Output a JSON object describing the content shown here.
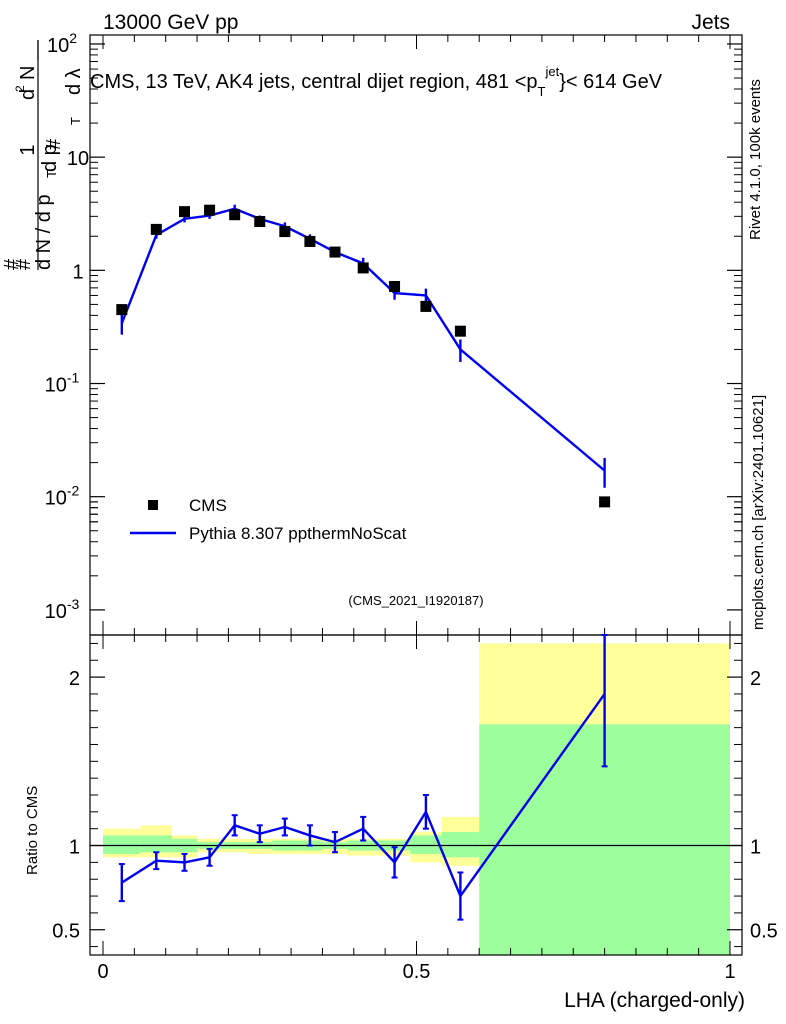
{
  "header": {
    "process": "13000 GeV pp",
    "category": "Jets",
    "side_label": "Rivet 4.1.0,  100k events",
    "side_source": "mcplots.cern.ch [arXiv:2401.10621]"
  },
  "main_panel": {
    "y_label": "1/dN/dp_T # d²N/dp_T dλ",
    "analysis_id": "(CMS_2021_I1920187)",
    "legend": {
      "data_label": "CMS",
      "mc_label": "Pythia 8.307 ppthermNoScat"
    }
  },
  "ratio_panel": {
    "y_label": "Ratio to CMS"
  },
  "colors": {
    "mc": "#0000ee",
    "data": "#000000",
    "band_inner": "#9cff9c",
    "band_outer": "#ffff99",
    "ref_text": "#999999"
  },
  "chart_data": {
    "type": "scatter",
    "title": "CMS, 13 TeV, AK4 jets, central dijet region, 481 <p_T^{jet}< 614 GeV",
    "xlabel": "LHA (charged-only)",
    "ylabel": "1/dN/dp_T # d²N/dp_T dλ",
    "xlim": [
      0,
      1
    ],
    "ylim": [
      0.0006,
      120
    ],
    "yscale": "log",
    "x_ticks": [
      "0",
      "0.5",
      "1"
    ],
    "y_ticks": [
      {
        "base": "10",
        "exp": "-3",
        "value": 0.001
      },
      {
        "base": "10",
        "exp": "-2",
        "value": 0.01
      },
      {
        "base": "10",
        "exp": "-1",
        "value": 0.1
      },
      {
        "base": "1",
        "exp": "",
        "value": 1
      },
      {
        "base": "10",
        "exp": "",
        "value": 10
      },
      {
        "base": "10",
        "exp": "2",
        "value": 100
      }
    ],
    "bin_edges": [
      0.0,
      0.06,
      0.11,
      0.15,
      0.19,
      0.23,
      0.27,
      0.31,
      0.35,
      0.39,
      0.44,
      0.49,
      0.54,
      0.6,
      1.0
    ],
    "series": [
      {
        "name": "CMS",
        "x": [
          0.03,
          0.085,
          0.13,
          0.17,
          0.21,
          0.25,
          0.29,
          0.33,
          0.37,
          0.415,
          0.465,
          0.515,
          0.57,
          0.8
        ],
        "values": [
          0.45,
          2.3,
          3.3,
          3.4,
          3.1,
          2.7,
          2.2,
          1.8,
          1.45,
          1.05,
          0.72,
          0.48,
          0.29,
          0.009
        ]
      },
      {
        "name": "Pythia 8.307 ppthermNoScat",
        "x": [
          0.03,
          0.085,
          0.13,
          0.17,
          0.21,
          0.25,
          0.29,
          0.33,
          0.37,
          0.415,
          0.465,
          0.515,
          0.57,
          0.8
        ],
        "values": [
          0.34,
          2.05,
          2.85,
          3.05,
          3.5,
          2.85,
          2.45,
          1.9,
          1.45,
          1.15,
          0.63,
          0.6,
          0.2,
          0.017
        ],
        "errors": [
          0.07,
          0.15,
          0.2,
          0.2,
          0.3,
          0.2,
          0.2,
          0.18,
          0.14,
          0.14,
          0.08,
          0.09,
          0.045,
          0.005
        ]
      }
    ],
    "ratio": {
      "ylabel": "Ratio to CMS",
      "ylim": [
        0.35,
        2.25
      ],
      "y_ticks": [
        "0.5",
        "1",
        "2"
      ],
      "y_tick_values": [
        0.5,
        1,
        2
      ],
      "values": [
        0.78,
        0.91,
        0.9,
        0.93,
        1.12,
        1.07,
        1.11,
        1.06,
        1.02,
        1.1,
        0.9,
        1.2,
        0.7,
        1.9
      ],
      "errors": [
        0.11,
        0.05,
        0.05,
        0.05,
        0.06,
        0.05,
        0.05,
        0.06,
        0.06,
        0.07,
        0.09,
        0.1,
        0.14,
        0.43
      ],
      "band_inner": [
        [
          0.95,
          1.06
        ],
        [
          0.96,
          1.06
        ],
        [
          0.96,
          1.04
        ],
        [
          0.98,
          1.02
        ],
        [
          0.98,
          1.02
        ],
        [
          0.98,
          1.02
        ],
        [
          0.97,
          1.03
        ],
        [
          0.97,
          1.03
        ],
        [
          0.98,
          1.02
        ],
        [
          0.97,
          1.03
        ],
        [
          0.97,
          1.03
        ],
        [
          0.95,
          1.06
        ],
        [
          0.93,
          1.08
        ],
        [
          0.0,
          1.72
        ]
      ],
      "band_outer": [
        [
          0.93,
          1.1
        ],
        [
          0.93,
          1.12
        ],
        [
          0.93,
          1.06
        ],
        [
          0.96,
          1.04
        ],
        [
          0.96,
          1.04
        ],
        [
          0.95,
          1.04
        ],
        [
          0.95,
          1.04
        ],
        [
          0.95,
          1.04
        ],
        [
          0.95,
          1.04
        ],
        [
          0.94,
          1.04
        ],
        [
          0.94,
          1.04
        ],
        [
          0.9,
          1.08
        ],
        [
          0.88,
          1.17
        ],
        [
          0.0,
          2.2
        ]
      ]
    }
  }
}
